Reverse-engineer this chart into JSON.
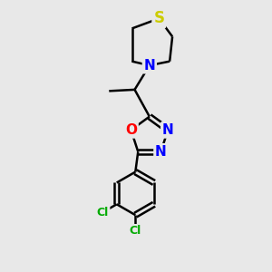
{
  "background_color": "#e8e8e8",
  "bond_color": "#000000",
  "bond_width": 1.8,
  "atom_colors": {
    "S": "#cccc00",
    "N": "#0000ff",
    "O": "#ff0000",
    "Cl": "#00aa00",
    "C": "#000000"
  },
  "font_size_S": 12,
  "font_size_N": 11,
  "font_size_O": 11,
  "font_size_Cl": 9,
  "img_xlim": [
    0,
    10
  ],
  "img_ylim": [
    0,
    10
  ]
}
